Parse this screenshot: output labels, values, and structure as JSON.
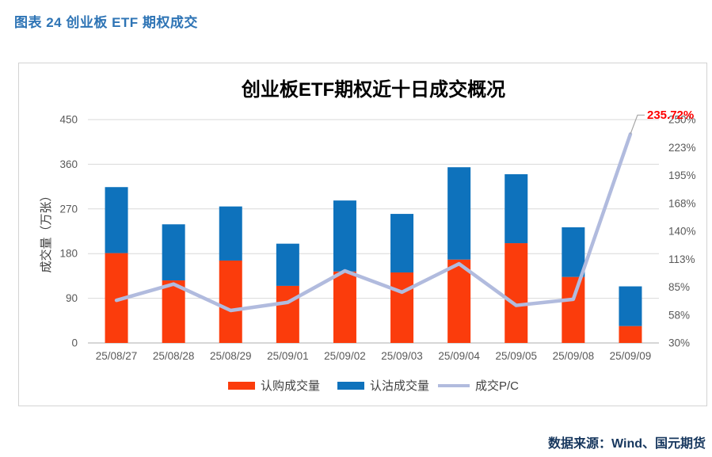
{
  "page": {
    "header": "图表 24 创业板 ETF 期权成交",
    "source": "数据来源：Wind、国元期货"
  },
  "chart": {
    "colors": {
      "call_bar": "#FB3C0C",
      "put_bar": "#0E72BC",
      "pc_line": "#B1BBDE",
      "annotation": "#FF0000",
      "grid": "#D9D9D9",
      "axis": "#C9C9C9",
      "tick_text": "#595959",
      "header_blue": "#2E74B5",
      "source_navy": "#17375E",
      "leader": "#A6A6A6"
    }
  },
  "chart_data": {
    "type": "bar",
    "subtype": "stacked-bars-with-line",
    "title": "创业板ETF期权近十日成交概况",
    "categories": [
      "25/08/27",
      "25/08/28",
      "25/08/29",
      "25/09/01",
      "25/09/02",
      "25/09/03",
      "25/09/04",
      "25/09/05",
      "25/09/08",
      "25/09/09"
    ],
    "series": [
      {
        "name": "认购成交量",
        "type": "bar",
        "stacked": true,
        "axis": "left",
        "color": "#FB3C0C",
        "values": [
          181,
          126,
          166,
          115,
          144,
          142,
          168,
          201,
          133,
          34
        ]
      },
      {
        "name": "认沽成交量",
        "type": "bar",
        "stacked": true,
        "axis": "left",
        "color": "#0E72BC",
        "values": [
          133,
          113,
          109,
          85,
          143,
          118,
          186,
          139,
          100,
          80
        ]
      },
      {
        "name": "成交P/C",
        "type": "line",
        "axis": "right",
        "color": "#B1BBDE",
        "values_percent": [
          72,
          88,
          62,
          70,
          101,
          80,
          108,
          67,
          73,
          235.72
        ]
      }
    ],
    "y_left": {
      "label": "成交量（万张）",
      "min": 0,
      "max": 450,
      "ticks": [
        0,
        90,
        180,
        270,
        360,
        450
      ]
    },
    "y_right": {
      "min": 30,
      "max": 250,
      "tick_labels": [
        "30%",
        "58%",
        "85%",
        "113%",
        "140%",
        "168%",
        "195%",
        "223%",
        "250%"
      ]
    },
    "annotation": {
      "text": "235.72%",
      "series": "成交P/C",
      "category": "25/09/09"
    },
    "grid": true,
    "legend_position": "bottom"
  }
}
